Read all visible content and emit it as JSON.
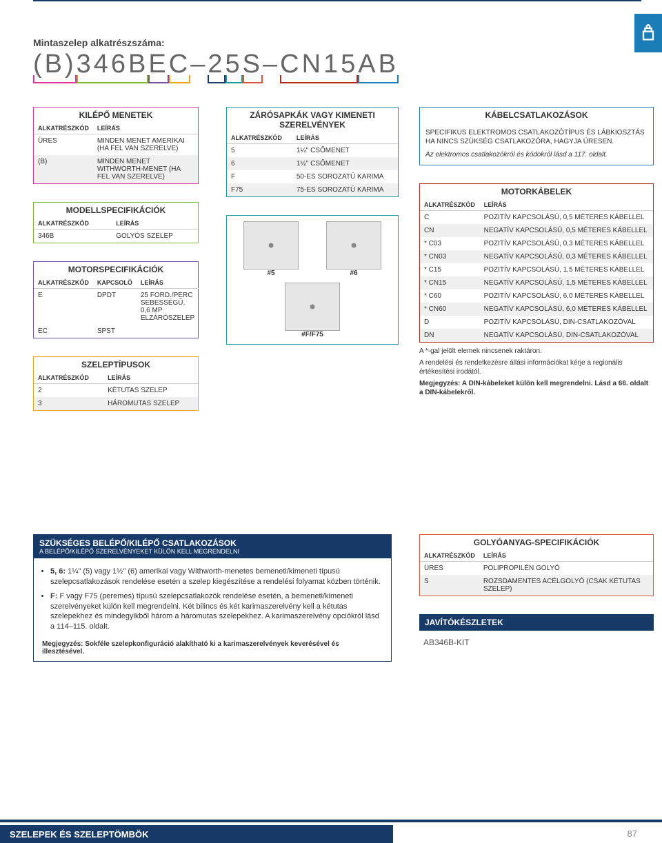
{
  "header": {
    "subtitle": "Mintaszelep alkatrészszáma:",
    "partno_groups": [
      {
        "text": "(B)",
        "cls": "g-b"
      },
      {
        "text": "346B",
        "cls": "g-346b"
      },
      {
        "text": "E",
        "cls": "g-e"
      },
      {
        "text": "C",
        "cls": "g-c"
      },
      {
        "text": "–",
        "cls": "g-dash",
        "nobracket": true
      },
      {
        "text": "2",
        "cls": "g-2"
      },
      {
        "text": "5",
        "cls": "g-5"
      },
      {
        "text": "S",
        "cls": "g-s"
      },
      {
        "text": "–",
        "cls": "g-dash",
        "nobracket": true
      },
      {
        "text": "CN15",
        "cls": "g-cn15"
      },
      {
        "text": "AB",
        "cls": "g-ab"
      }
    ]
  },
  "col_headers": {
    "code": "ALKATRÉSZKÓD",
    "desc": "LEÍRÁS",
    "switch": "KAPCSOLÓ"
  },
  "boxes": {
    "outlet": {
      "title": "KILÉPŐ MENETEK",
      "rows": [
        {
          "code": "ÜRES",
          "desc": "MINDEN MENET AMERIKAI (HA FEL VAN SZERELVE)"
        },
        {
          "code": "(B)",
          "desc": "MINDEN MENET WITHWORTH-MENET (HA FEL VAN SZERELVE)"
        }
      ]
    },
    "model": {
      "title": "MODELLSPECIFIKÁCIÓK",
      "rows": [
        {
          "code": "346B",
          "desc": "GOLYÓS SZELEP"
        }
      ]
    },
    "motor_spec": {
      "title": "MOTORSPECIFIKÁCIÓK",
      "rows": [
        {
          "code": "E",
          "switch": "DPDT",
          "desc": "25 FORD./PERC SEBESSÉGŰ, 0,6 MP ELZÁRÓSZELEP"
        },
        {
          "code": "EC",
          "switch": "SPST",
          "desc": ""
        }
      ]
    },
    "valve_types": {
      "title": "SZELEPTÍPUSOK",
      "rows": [
        {
          "code": "2",
          "desc": "KÉTUTAS SZELEP"
        },
        {
          "code": "3",
          "desc": "HÁROMUTAS SZELEP"
        }
      ]
    },
    "endcaps": {
      "title": "ZÁRÓSAPKÁK VAGY KIMENETI SZERELVÉNYEK",
      "rows": [
        {
          "code": "5",
          "desc": "1¼\" CSŐMENET"
        },
        {
          "code": "6",
          "desc": "1½\" CSŐMENET"
        },
        {
          "code": "F",
          "desc": "50-ES SOROZATÚ KARIMA"
        },
        {
          "code": "F75",
          "desc": "75-ES SOROZATÚ KARIMA"
        }
      ],
      "images": [
        {
          "label": "#5"
        },
        {
          "label": "#6"
        },
        {
          "label": "#F/F75"
        }
      ]
    },
    "cable_conn": {
      "title": "KÁBELCSATLAKOZÁSOK",
      "text1": "SPECIFIKUS ELEKTROMOS CSATLAKOZÓTÍPUS ÉS LÁBKIOSZTÁS HA NINCS SZÜKSÉG CSATLAKOZÓRA, HAGYJA ÜRESEN.",
      "text2": "Az elektromos csatlakozókról és kódokról lásd a 117. oldalt."
    },
    "motor_cables": {
      "title": "MOTORKÁBELEK",
      "rows": [
        {
          "code": "C",
          "desc": "POZITÍV KAPCSOLÁSÚ, 0,5 MÉTERES KÁBELLEL"
        },
        {
          "code": "CN",
          "desc": "NEGATÍV KAPCSOLÁSÚ, 0,5 MÉTERES KÁBELLEL"
        },
        {
          "code": "* C03",
          "desc": "POZITÍV KAPCSOLÁSÚ, 0,3 MÉTERES KÁBELLEL"
        },
        {
          "code": "* CN03",
          "desc": "NEGATÍV KAPCSOLÁSÚ, 0,3 MÉTERES KÁBELLEL"
        },
        {
          "code": "* C15",
          "desc": "POZITÍV KAPCSOLÁSÚ, 1,5 MÉTERES KÁBELLEL"
        },
        {
          "code": "* CN15",
          "desc": "NEGATÍV KAPCSOLÁSÚ, 1,5 MÉTERES KÁBELLEL"
        },
        {
          "code": "* C60",
          "desc": "POZITÍV KAPCSOLÁSÚ, 6,0 MÉTERES KÁBELLEL"
        },
        {
          "code": "* CN60",
          "desc": "NEGATÍV KAPCSOLÁSÚ, 6,0 MÉTERES KÁBELLEL"
        },
        {
          "code": "D",
          "desc": "POZITÍV KAPCSOLÁSÚ, DIN-CSATLAKOZÓVAL"
        },
        {
          "code": "DN",
          "desc": "NEGATÍV KAPCSOLÁSÚ, DIN-CSATLAKOZÓVAL"
        }
      ],
      "note1": "A *-gal jelölt elemek nincsenek raktáron.",
      "note2": "A rendelési és rendelkezésre állási információkat kérje a regionális értékesítési irodától.",
      "note3": "Megjegyzés: A DIN-kábeleket külön kell megrendelni. Lásd a 66. oldalt a DIN-kábelekről."
    },
    "required_conn": {
      "title": "SZÜKSÉGES BELÉPŐ/KILÉPŐ CSATLAKOZÁSOK",
      "sub": "A BELÉPŐ/KILÉPŐ SZERELVÉNYEKET KÜLÖN KELL MEGRENDELNI",
      "bullets": [
        "5, 6: 1¼\" (5) vagy 1½\" (6) amerikai vagy Withworth-menetes bemeneti/kimeneti típusú szelepcsatlakozások rendelése esetén a szelep kiegészítése a rendelési folyamat közben történik.",
        "F: F vagy F75 (peremes) típusú szelepcsatlakozók rendelése esetén, a bemeneti/kimeneti szerelvényeket külön kell megrendelni. Két bilincs és két karimaszerelvény kell a kétutas szelepekhez és mindegyikből három a háromutas szelepekhez. A karimaszerelvény opciókról lásd a 114–115. oldalt."
      ],
      "note": "Megjegyzés: Sokféle szelepkonfiguráció alakítható ki a karimaszerelvények keverésével és illesztésével."
    },
    "ball_spec": {
      "title": "GOLYÓANYAG-SPECIFIKÁCIÓK",
      "rows": [
        {
          "code": "ÜRES",
          "desc": "POLIPROPILÉN GOLYÓ"
        },
        {
          "code": "S",
          "desc": "ROZSDAMENTES ACÉLGOLYÓ (CSAK KÉTUTAS SZELEP)"
        }
      ]
    },
    "repair": {
      "title": "JAVÍTÓKÉSZLETEK",
      "kit": "AB346B-KIT"
    }
  },
  "footer": {
    "title": "SZELEPEK ÉS SZELEPTÖMBÖK",
    "page": "87"
  }
}
